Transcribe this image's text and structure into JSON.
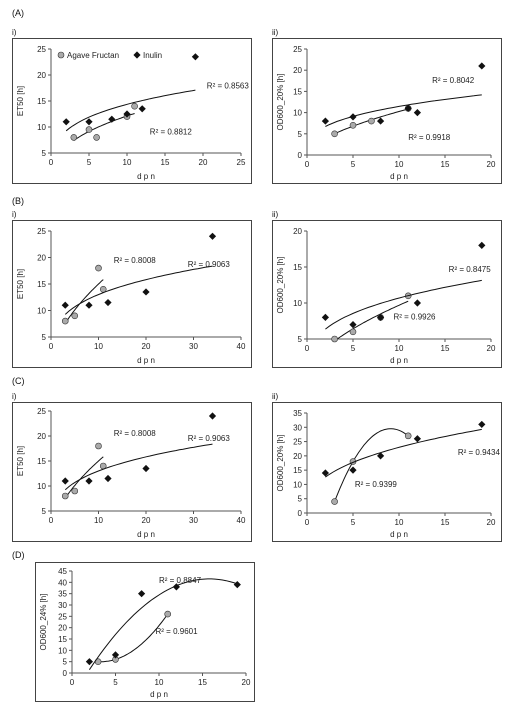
{
  "section_labels": {
    "a": "(A)",
    "b": "(B)",
    "c": "(C)",
    "d": "(D)"
  },
  "sub_labels": {
    "i": "i)",
    "ii": "ii)"
  },
  "colors": {
    "agave_marker": "#aaaaaa",
    "inulin_marker": "#111111",
    "trend": "#111111"
  },
  "chart_data": [
    {
      "id": "A-i",
      "type": "scatter",
      "title": "",
      "xlabel": "d p n",
      "ylabel": "ET50 [h]",
      "xlim": [
        0,
        25
      ],
      "ylim": [
        5,
        25
      ],
      "xticks": [
        0,
        5,
        10,
        15,
        20,
        25
      ],
      "yticks": [
        5,
        10,
        15,
        20,
        25
      ],
      "legend": {
        "placement": "top-left",
        "entries": [
          "Agave Fructan",
          "Inulin"
        ]
      },
      "series": [
        {
          "name": "Agave Fructan",
          "marker": "circle",
          "points": [
            [
              3,
              8
            ],
            [
              5,
              9.5
            ],
            [
              6,
              8
            ],
            [
              10,
              12
            ],
            [
              11,
              14
            ]
          ],
          "trend": {
            "kind": "power",
            "r2_label": "R² = 0.8812"
          }
        },
        {
          "name": "Inulin",
          "marker": "diamond",
          "points": [
            [
              2,
              11
            ],
            [
              5,
              11
            ],
            [
              8,
              11.5
            ],
            [
              10,
              12.5
            ],
            [
              12,
              13.5
            ],
            [
              19,
              23.5
            ]
          ],
          "trend": {
            "kind": "power",
            "r2_label": "R² = 0.8563"
          }
        }
      ]
    },
    {
      "id": "A-ii",
      "type": "scatter",
      "title": "",
      "xlabel": "d p n",
      "ylabel": "OD600_20% [h]",
      "xlim": [
        0,
        20
      ],
      "ylim": [
        0,
        25
      ],
      "xticks": [
        0,
        5,
        10,
        15,
        20
      ],
      "yticks": [
        0,
        5,
        10,
        15,
        20,
        25
      ],
      "series": [
        {
          "name": "Agave Fructan",
          "marker": "circle",
          "points": [
            [
              3,
              5
            ],
            [
              5,
              7
            ],
            [
              7,
              8
            ],
            [
              11,
              11
            ]
          ],
          "trend": {
            "kind": "power",
            "r2_label": "R² = 0.9918"
          }
        },
        {
          "name": "Inulin",
          "marker": "diamond",
          "points": [
            [
              2,
              8
            ],
            [
              5,
              9
            ],
            [
              8,
              8
            ],
            [
              11,
              11
            ],
            [
              12,
              10
            ],
            [
              19,
              21
            ]
          ],
          "trend": {
            "kind": "power",
            "r2_label": "R² = 0.8042"
          }
        }
      ]
    },
    {
      "id": "B-i",
      "type": "scatter",
      "title": "",
      "xlabel": "d p n",
      "ylabel": "ET50 [h]",
      "xlim": [
        0,
        40
      ],
      "ylim": [
        5,
        25
      ],
      "xticks": [
        0,
        10,
        20,
        30,
        40
      ],
      "yticks": [
        5,
        10,
        15,
        20,
        25
      ],
      "series": [
        {
          "name": "Agave Fructan",
          "marker": "circle",
          "points": [
            [
              3,
              8
            ],
            [
              5,
              9
            ],
            [
              10,
              18
            ],
            [
              11,
              14
            ]
          ],
          "trend": {
            "kind": "power",
            "r2_label": "R² = 0.8008"
          }
        },
        {
          "name": "Inulin",
          "marker": "diamond",
          "points": [
            [
              3,
              11
            ],
            [
              8,
              11
            ],
            [
              12,
              11.5
            ],
            [
              20,
              13.5
            ],
            [
              34,
              24
            ]
          ],
          "trend": {
            "kind": "power",
            "r2_label": "R² = 0.9063"
          }
        }
      ]
    },
    {
      "id": "B-ii",
      "type": "scatter",
      "title": "",
      "xlabel": "d p n",
      "ylabel": "OD600_20% [h]",
      "xlim": [
        0,
        20
      ],
      "ylim": [
        5,
        20
      ],
      "xticks": [
        0,
        5,
        10,
        15,
        20
      ],
      "yticks": [
        5,
        10,
        15,
        20
      ],
      "series": [
        {
          "name": "Agave Fructan",
          "marker": "circle",
          "points": [
            [
              3,
              5
            ],
            [
              5,
              6
            ],
            [
              8,
              8
            ],
            [
              11,
              11
            ]
          ],
          "trend": {
            "kind": "power",
            "r2_label": "R² = 0.9926"
          }
        },
        {
          "name": "Inulin",
          "marker": "diamond",
          "points": [
            [
              2,
              8
            ],
            [
              5,
              7
            ],
            [
              8,
              8
            ],
            [
              12,
              10
            ],
            [
              19,
              18
            ]
          ],
          "trend": {
            "kind": "power",
            "r2_label": "R² = 0.8475"
          }
        }
      ]
    },
    {
      "id": "C-i",
      "type": "scatter",
      "title": "",
      "xlabel": "d p n",
      "ylabel": "ET50 [h]",
      "xlim": [
        0,
        40
      ],
      "ylim": [
        5,
        25
      ],
      "xticks": [
        0,
        10,
        20,
        30,
        40
      ],
      "yticks": [
        5,
        10,
        15,
        20,
        25
      ],
      "series": [
        {
          "name": "Agave Fructan",
          "marker": "circle",
          "points": [
            [
              3,
              8
            ],
            [
              5,
              9
            ],
            [
              10,
              18
            ],
            [
              11,
              14
            ]
          ],
          "trend": {
            "kind": "power",
            "r2_label": "R² = 0.8008"
          }
        },
        {
          "name": "Inulin",
          "marker": "diamond",
          "points": [
            [
              3,
              11
            ],
            [
              8,
              11
            ],
            [
              12,
              11.5
            ],
            [
              20,
              13.5
            ],
            [
              34,
              24
            ]
          ],
          "trend": {
            "kind": "power",
            "r2_label": "R² = 0.9063"
          }
        }
      ]
    },
    {
      "id": "C-ii",
      "type": "scatter",
      "title": "",
      "xlabel": "d p n",
      "ylabel": "OD600_20% [h]",
      "xlim": [
        0,
        20
      ],
      "ylim": [
        0,
        35
      ],
      "xticks": [
        0,
        5,
        10,
        15,
        20
      ],
      "yticks": [
        0,
        5,
        10,
        15,
        20,
        25,
        30,
        35
      ],
      "series": [
        {
          "name": "Agave Fructan",
          "marker": "circle",
          "points": [
            [
              3,
              4
            ],
            [
              5,
              18
            ],
            [
              11,
              27
            ]
          ],
          "trend": {
            "kind": "poly2",
            "r2_label": "R² = 0.9399"
          }
        },
        {
          "name": "Inulin",
          "marker": "diamond",
          "points": [
            [
              2,
              14
            ],
            [
              5,
              15
            ],
            [
              8,
              20
            ],
            [
              12,
              26
            ],
            [
              19,
              31
            ]
          ],
          "trend": {
            "kind": "power",
            "r2_label": "R² = 0.9434"
          }
        }
      ]
    },
    {
      "id": "D",
      "type": "scatter",
      "title": "",
      "xlabel": "d p n",
      "ylabel": "OD600_24% [h]",
      "xlim": [
        0,
        20
      ],
      "ylim": [
        0,
        45
      ],
      "xticks": [
        0,
        5,
        10,
        15,
        20
      ],
      "yticks": [
        0,
        5,
        10,
        15,
        20,
        25,
        30,
        35,
        40,
        45
      ],
      "series": [
        {
          "name": "Agave Fructan",
          "marker": "circle",
          "points": [
            [
              3,
              5
            ],
            [
              5,
              6
            ],
            [
              11,
              26
            ]
          ],
          "trend": {
            "kind": "poly2",
            "r2_label": "R² = 0.9601"
          }
        },
        {
          "name": "Inulin",
          "marker": "diamond",
          "points": [
            [
              2,
              5
            ],
            [
              5,
              8
            ],
            [
              8,
              35
            ],
            [
              12,
              38
            ],
            [
              19,
              39
            ]
          ],
          "trend": {
            "kind": "poly2",
            "r2_label": "R² = 0.8847"
          }
        }
      ]
    }
  ]
}
